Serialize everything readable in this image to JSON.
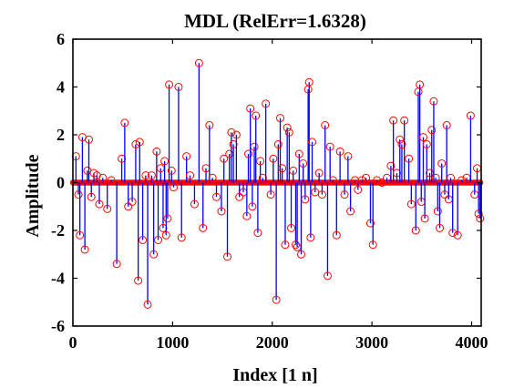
{
  "chart_data": {
    "type": "stem",
    "title": "MDL (RelErr=1.6328)",
    "xlabel": "Index [1 n]",
    "ylabel": "Amplitude",
    "xlim": [
      0,
      4096
    ],
    "ylim": [
      -6,
      6
    ],
    "xticks": [
      0,
      1000,
      2000,
      3000,
      4000
    ],
    "yticks": [
      -6,
      -4,
      -2,
      0,
      2,
      4,
      6
    ],
    "grid": false,
    "legend": "none",
    "colors": {
      "stem": "#0000ff",
      "marker": "#ff0000",
      "zero_line": "#ff0000",
      "zero_dots": "#ff0000"
    },
    "series": [
      {
        "points": [
          [
            30,
            1.1
          ],
          [
            55,
            -0.5
          ],
          [
            70,
            -2.2
          ],
          [
            95,
            1.9
          ],
          [
            120,
            -2.8
          ],
          [
            145,
            0.5
          ],
          [
            160,
            1.8
          ],
          [
            185,
            -0.6
          ],
          [
            210,
            0.4
          ],
          [
            240,
            0.3
          ],
          [
            265,
            -0.9
          ],
          [
            300,
            0.2
          ],
          [
            345,
            -1.1
          ],
          [
            385,
            0.1
          ],
          [
            440,
            -3.4
          ],
          [
            490,
            1.0
          ],
          [
            520,
            2.5
          ],
          [
            555,
            -1.0
          ],
          [
            595,
            -0.8
          ],
          [
            630,
            1.6
          ],
          [
            655,
            -4.1
          ],
          [
            670,
            1.7
          ],
          [
            700,
            -2.4
          ],
          [
            730,
            0.3
          ],
          [
            750,
            -5.1
          ],
          [
            790,
            0.3
          ],
          [
            810,
            -3.0
          ],
          [
            840,
            1.3
          ],
          [
            855,
            -2.4
          ],
          [
            880,
            0.6
          ],
          [
            905,
            -1.9
          ],
          [
            920,
            0.9
          ],
          [
            935,
            -2.2
          ],
          [
            950,
            -1.5
          ],
          [
            965,
            4.1
          ],
          [
            990,
            0.5
          ],
          [
            1010,
            -0.2
          ],
          [
            1060,
            4.0
          ],
          [
            1090,
            -2.3
          ],
          [
            1140,
            1.1
          ],
          [
            1175,
            0.3
          ],
          [
            1220,
            -0.9
          ],
          [
            1265,
            5.0
          ],
          [
            1305,
            -1.9
          ],
          [
            1335,
            0.6
          ],
          [
            1370,
            2.4
          ],
          [
            1400,
            0.2
          ],
          [
            1440,
            -0.6
          ],
          [
            1490,
            -1.2
          ],
          [
            1515,
            1.0
          ],
          [
            1550,
            -3.1
          ],
          [
            1570,
            1.2
          ],
          [
            1590,
            2.1
          ],
          [
            1610,
            1.6
          ],
          [
            1640,
            2.0
          ],
          [
            1670,
            -0.6
          ],
          [
            1710,
            -0.4
          ],
          [
            1745,
            -1.4
          ],
          [
            1760,
            1.2
          ],
          [
            1780,
            3.1
          ],
          [
            1800,
            -1.0
          ],
          [
            1820,
            1.5
          ],
          [
            1835,
            2.8
          ],
          [
            1855,
            -2.1
          ],
          [
            1880,
            0.9
          ],
          [
            1905,
            0.2
          ],
          [
            1935,
            3.3
          ],
          [
            1985,
            -0.5
          ],
          [
            2010,
            1.0
          ],
          [
            2040,
            -4.9
          ],
          [
            2060,
            1.6
          ],
          [
            2080,
            2.7
          ],
          [
            2100,
            0.6
          ],
          [
            2130,
            -2.6
          ],
          [
            2150,
            2.3
          ],
          [
            2170,
            2.1
          ],
          [
            2190,
            -1.9
          ],
          [
            2210,
            0.5
          ],
          [
            2235,
            -2.6
          ],
          [
            2250,
            -2.7
          ],
          [
            2270,
            1.2
          ],
          [
            2290,
            -3.0
          ],
          [
            2310,
            0.8
          ],
          [
            2330,
            -0.7
          ],
          [
            2360,
            3.9
          ],
          [
            2370,
            4.2
          ],
          [
            2385,
            -2.3
          ],
          [
            2400,
            1.7
          ],
          [
            2430,
            -0.4
          ],
          [
            2470,
            0.4
          ],
          [
            2500,
            -0.5
          ],
          [
            2530,
            2.4
          ],
          [
            2555,
            -3.9
          ],
          [
            2580,
            1.5
          ],
          [
            2610,
            0.1
          ],
          [
            2645,
            -2.2
          ],
          [
            2680,
            1.3
          ],
          [
            2725,
            -0.5
          ],
          [
            2760,
            1.1
          ],
          [
            2785,
            -1.2
          ],
          [
            2830,
            0.1
          ],
          [
            2860,
            -0.3
          ],
          [
            2900,
            0.1
          ],
          [
            2940,
            0.2
          ],
          [
            2985,
            -1.7
          ],
          [
            3010,
            -2.6
          ],
          [
            3050,
            0.1
          ],
          [
            3100,
            0.0
          ],
          [
            3150,
            0.2
          ],
          [
            3190,
            0.7
          ],
          [
            3215,
            2.6
          ],
          [
            3250,
            0.4
          ],
          [
            3280,
            1.8
          ],
          [
            3300,
            1.6
          ],
          [
            3325,
            2.6
          ],
          [
            3370,
            1.0
          ],
          [
            3395,
            -0.9
          ],
          [
            3440,
            -2.0
          ],
          [
            3465,
            3.8
          ],
          [
            3480,
            4.1
          ],
          [
            3495,
            -0.8
          ],
          [
            3515,
            1.9
          ],
          [
            3530,
            -1.5
          ],
          [
            3550,
            1.6
          ],
          [
            3580,
            0.4
          ],
          [
            3600,
            2.2
          ],
          [
            3620,
            3.4
          ],
          [
            3640,
            0.2
          ],
          [
            3660,
            -1.2
          ],
          [
            3680,
            -1.9
          ],
          [
            3700,
            0.8
          ],
          [
            3730,
            -0.5
          ],
          [
            3750,
            2.4
          ],
          [
            3770,
            -0.7
          ],
          [
            3790,
            0.2
          ],
          [
            3810,
            -2.1
          ],
          [
            3860,
            -2.2
          ],
          [
            3900,
            0.1
          ],
          [
            3950,
            0.2
          ],
          [
            3990,
            2.8
          ],
          [
            4030,
            -0.5
          ],
          [
            4055,
            0.6
          ],
          [
            4070,
            -1.3
          ],
          [
            4085,
            -1.5
          ]
        ]
      }
    ]
  }
}
